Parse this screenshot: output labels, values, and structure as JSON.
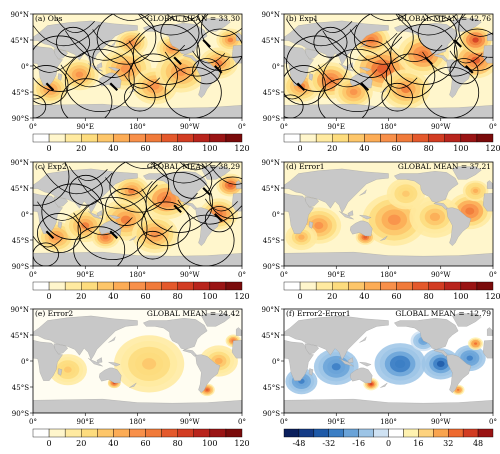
{
  "figure": {
    "lat_ticks": [
      "90°N",
      "45°N",
      "0°",
      "45°S",
      "90°S"
    ],
    "lon_ticks": [
      "0°",
      "90°E",
      "180°",
      "90°W",
      "0°"
    ],
    "panels": [
      {
        "label": "(a) Obs",
        "global_mean": "GLOBAL MEAN = 33.30",
        "mode": "obs",
        "colorbar": "main"
      },
      {
        "label": "(b) Exp1",
        "global_mean": "GLOBAL MEAN = 42.76",
        "mode": "exp",
        "colorbar": "main"
      },
      {
        "label": "(c) Exp2",
        "global_mean": "GLOBAL MEAN = 38.29",
        "mode": "exp2",
        "colorbar": "main"
      },
      {
        "label": "(d) Error1",
        "global_mean": "GLOBAL MEAN = 37.21",
        "mode": "err",
        "colorbar": "main"
      },
      {
        "label": "(e) Error2",
        "global_mean": "GLOBAL MEAN = 24.42",
        "mode": "err2",
        "colorbar": "main"
      },
      {
        "label": "(f) Error2-Error1",
        "global_mean": "GLOBAL MEAN = -12.79",
        "mode": "diff",
        "colorbar": "diff"
      }
    ]
  },
  "colorbars": {
    "main": {
      "labels": [
        "0",
        "20",
        "40",
        "60",
        "80",
        "100",
        "120"
      ],
      "colors": [
        "#ffffff",
        "#fff6cc",
        "#ffeaa0",
        "#fddc7e",
        "#fdc66a",
        "#fcac56",
        "#f8904a",
        "#f07a3a",
        "#e4592c",
        "#d23c22",
        "#b8241c",
        "#9a1414",
        "#7a0b0b"
      ]
    },
    "diff": {
      "labels": [
        "-48",
        "-32",
        "-16",
        "0",
        "16",
        "32",
        "48"
      ],
      "colors": [
        "#0a1f5c",
        "#143b86",
        "#1e5aa8",
        "#3b7ec4",
        "#6aa3d8",
        "#9cc4e6",
        "#cfe2f3",
        "#ffffff",
        "#fff2b0",
        "#fdd27e",
        "#f9a44e",
        "#ee6a30",
        "#d23c22",
        "#9a1414"
      ]
    }
  }
}
